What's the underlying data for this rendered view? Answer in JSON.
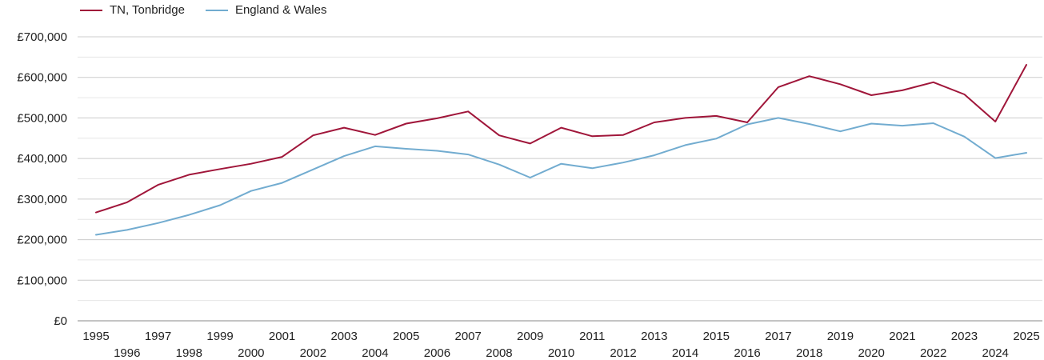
{
  "chart_data": {
    "type": "line",
    "title": "",
    "xlabel": "",
    "ylabel": "",
    "x": [
      1995,
      1996,
      1997,
      1998,
      1999,
      2000,
      2001,
      2002,
      2003,
      2004,
      2005,
      2006,
      2007,
      2008,
      2009,
      2010,
      2011,
      2012,
      2013,
      2014,
      2015,
      2016,
      2017,
      2018,
      2019,
      2020,
      2021,
      2022,
      2023,
      2024,
      2025
    ],
    "ylim": [
      0,
      700000
    ],
    "yticks": [
      0,
      100000,
      200000,
      300000,
      400000,
      500000,
      600000,
      700000
    ],
    "ytick_labels": [
      "£0",
      "£100,000",
      "£200,000",
      "£300,000",
      "£400,000",
      "£500,000",
      "£600,000",
      "£700,000"
    ],
    "xtick_labels": [
      "1995",
      "1996",
      "1997",
      "1998",
      "1999",
      "2000",
      "2001",
      "2002",
      "2003",
      "2004",
      "2005",
      "2006",
      "2007",
      "2008",
      "2009",
      "2010",
      "2011",
      "2012",
      "2013",
      "2014",
      "2015",
      "2016",
      "2017",
      "2018",
      "2019",
      "2020",
      "2021",
      "2022",
      "2023",
      "2024",
      "2025"
    ],
    "grid": true,
    "legend_position": "top-left",
    "series": [
      {
        "name": "TN, Tonbridge",
        "color": "#a0163a",
        "values": [
          267000,
          292000,
          335000,
          360000,
          374000,
          387000,
          404000,
          457000,
          476000,
          458000,
          486000,
          499000,
          516000,
          457000,
          437000,
          476000,
          455000,
          458000,
          489000,
          500000,
          505000,
          489000,
          576000,
          603000,
          583000,
          556000,
          568000,
          588000,
          558000,
          491000,
          631000
        ]
      },
      {
        "name": "England & Wales",
        "color": "#72acd0",
        "values": [
          212000,
          224000,
          241000,
          261000,
          285000,
          320000,
          340000,
          373000,
          406000,
          430000,
          424000,
          419000,
          410000,
          385000,
          353000,
          387000,
          376000,
          390000,
          408000,
          433000,
          449000,
          484000,
          500000,
          485000,
          467000,
          486000,
          481000,
          487000,
          454000,
          401000,
          414000
        ]
      }
    ]
  }
}
